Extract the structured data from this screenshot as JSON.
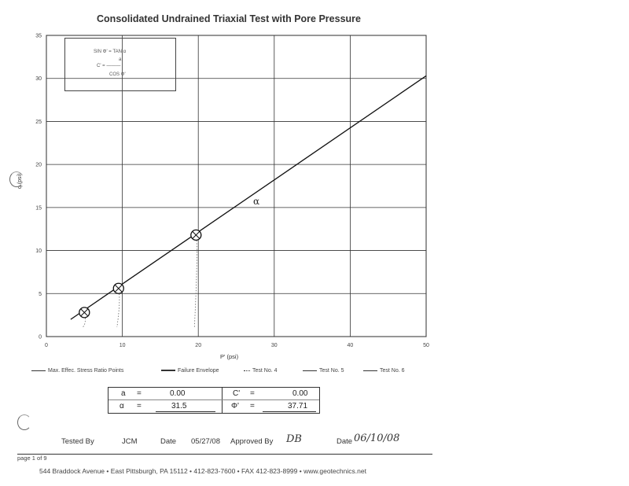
{
  "chart_data": {
    "type": "scatter",
    "title": "Consolidated Undrained Triaxial Test with Pore Pressure",
    "xlabel": "P' (psi)",
    "ylabel": "q (psi)",
    "xlim": [
      0,
      50
    ],
    "ylim": [
      0,
      35
    ],
    "xticks": [
      "0",
      "10",
      "20",
      "30",
      "40",
      "50"
    ],
    "yticks": [
      "0",
      "5",
      "10",
      "15",
      "20",
      "25",
      "30",
      "35"
    ],
    "grid": true,
    "points": [
      {
        "x": 5.0,
        "y": 2.8
      },
      {
        "x": 9.5,
        "y": 5.6
      },
      {
        "x": 19.7,
        "y": 11.8
      }
    ],
    "envelope": {
      "x": [
        3.2,
        50.0
      ],
      "y": [
        2.0,
        30.3
      ]
    },
    "annotation": "α",
    "equation": {
      "line1": "SIN Φ' = TAN α",
      "line2": "a",
      "line3": "C' = ———",
      "line4": "COS Φ'"
    },
    "legend": [
      {
        "label": "Max. Effec. Stress Ratio Points"
      },
      {
        "label": "Failure Envelope"
      },
      {
        "label": "Test No. 4"
      },
      {
        "label": "Test No. 5"
      },
      {
        "label": "Test No. 6"
      }
    ]
  },
  "results": {
    "a_label": "a",
    "a_eq": "=",
    "a_value": "0.00",
    "alpha_label": "α",
    "alpha_eq": "=",
    "alpha_value": "31.5",
    "c_label": "C'",
    "c_eq": "=",
    "c_value": "0.00",
    "phi_label": "Φ'",
    "phi_eq": "=",
    "phi_value": "37.71"
  },
  "signoff": {
    "tested_label": "Tested By",
    "tested_value": "JCM",
    "date_label": "Date",
    "date_value": "05/27/08",
    "approved_label": "Approved By",
    "approved_value": "DB",
    "date2_label": "Date",
    "date2_value": "06/10/08"
  },
  "page_label": "page 1 of 9",
  "footer": "544 Braddock Avenue  •  East Pittsburgh, PA 15112  •  412-823-7600  •  FAX 412-823-8999  •  www.geotechnics.net"
}
